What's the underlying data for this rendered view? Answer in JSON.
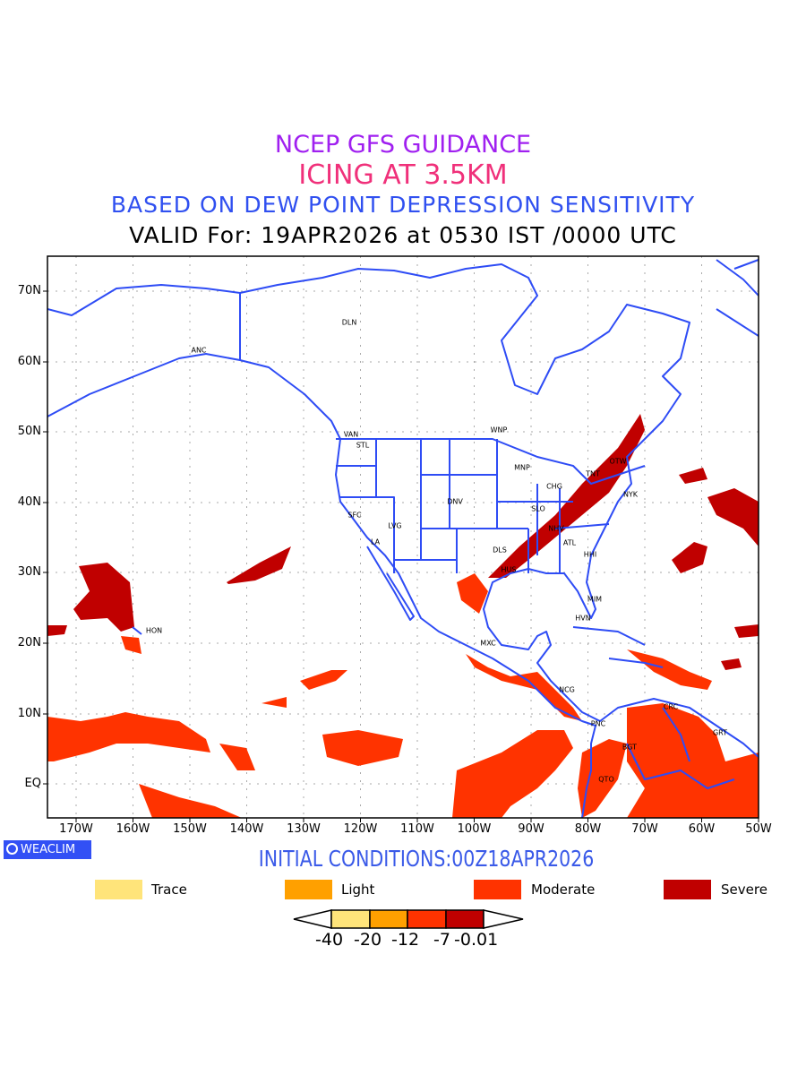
{
  "title": {
    "line1": "NCEP GFS GUIDANCE",
    "line2": "ICING AT 3.5KM",
    "line3": "BASED ON DEW POINT DEPRESSION SENSITIVITY",
    "line4": "VALID For: 19APR2026 at 0530 IST /0000 UTC"
  },
  "map": {
    "lat_labels": [
      "70N",
      "60N",
      "50N",
      "40N",
      "30N",
      "20N",
      "10N",
      "EQ"
    ],
    "lon_labels": [
      "170W",
      "160W",
      "150W",
      "140W",
      "130W",
      "120W",
      "110W",
      "100W",
      "90W",
      "80W",
      "70W",
      "60W",
      "50W"
    ],
    "cities": [
      "ANC",
      "DLN",
      "VAN",
      "STL",
      "WNP",
      "MNP",
      "CHG",
      "TNT",
      "OTW",
      "NYK",
      "DNV",
      "SLO",
      "SFC",
      "LVG",
      "LA",
      "NHV",
      "ATL",
      "DLS",
      "HHI",
      "HUS",
      "MIM",
      "HVN",
      "HON",
      "MXC",
      "NCG",
      "CRC",
      "PNC",
      "GRT",
      "BGT",
      "QTO"
    ],
    "colors": {
      "coast": "#2e4cf5",
      "severe": "#c00000",
      "moderate": "#ff3300",
      "light": "#ffa000",
      "trace": "#ffe47a",
      "grid": "#aaaaaa"
    }
  },
  "logo": "WEACLIM",
  "initial_conditions": "INITIAL CONDITIONS:00Z18APR2026",
  "legend": [
    {
      "label": "Trace",
      "color": "#ffe47a"
    },
    {
      "label": "Light",
      "color": "#ffa000"
    },
    {
      "label": "Moderate",
      "color": "#ff3300"
    },
    {
      "label": "Severe",
      "color": "#c00000"
    }
  ],
  "colorbar": {
    "labels": [
      "-40",
      "-20",
      "-12",
      "-7",
      "-0.01"
    ]
  }
}
